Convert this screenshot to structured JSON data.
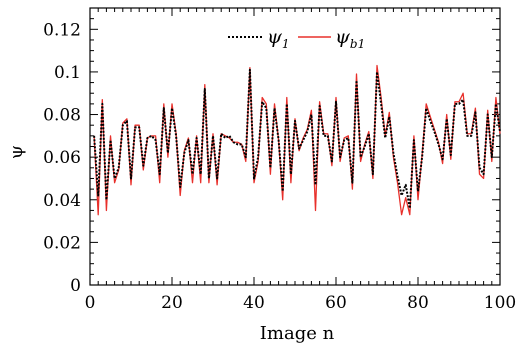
{
  "chart_data": {
    "type": "line",
    "xlabel": "Image n",
    "ylabel": "ψ",
    "xlim": [
      0,
      100
    ],
    "ylim": [
      0,
      0.13
    ],
    "xticks": [
      "0",
      "20",
      "40",
      "60",
      "80",
      "100"
    ],
    "yticks": [
      "0",
      "0.02",
      "0.04",
      "0.06",
      "0.08",
      "0.1",
      "0.12"
    ],
    "legend_position": "top-center",
    "x": [
      1,
      2,
      3,
      4,
      5,
      6,
      7,
      8,
      9,
      10,
      11,
      12,
      13,
      14,
      15,
      16,
      17,
      18,
      19,
      20,
      21,
      22,
      23,
      24,
      25,
      26,
      27,
      28,
      29,
      30,
      31,
      32,
      33,
      34,
      35,
      36,
      37,
      38,
      39,
      40,
      41,
      42,
      43,
      44,
      45,
      46,
      47,
      48,
      49,
      50,
      51,
      52,
      53,
      54,
      55,
      56,
      57,
      58,
      59,
      60,
      61,
      62,
      63,
      64,
      65,
      66,
      67,
      68,
      69,
      70,
      71,
      72,
      73,
      74,
      75,
      76,
      77,
      78,
      79,
      80,
      81,
      82,
      83,
      84,
      85,
      86,
      87,
      88,
      89,
      90,
      91,
      92,
      93,
      94,
      95,
      96,
      97,
      98,
      99,
      100
    ],
    "series": [
      {
        "name": "ψ1",
        "color": "#000000",
        "dash": "dotted",
        "values": [
          0.07,
          0.042,
          0.085,
          0.04,
          0.068,
          0.05,
          0.055,
          0.075,
          0.077,
          0.05,
          0.074,
          0.074,
          0.056,
          0.069,
          0.07,
          0.068,
          0.052,
          0.083,
          0.062,
          0.083,
          0.07,
          0.046,
          0.062,
          0.068,
          0.052,
          0.069,
          0.052,
          0.092,
          0.05,
          0.07,
          0.05,
          0.071,
          0.069,
          0.07,
          0.067,
          0.066,
          0.066,
          0.06,
          0.101,
          0.05,
          0.06,
          0.086,
          0.083,
          0.055,
          0.083,
          0.068,
          0.044,
          0.085,
          0.052,
          0.077,
          0.064,
          0.068,
          0.072,
          0.08,
          0.047,
          0.084,
          0.07,
          0.07,
          0.058,
          0.086,
          0.06,
          0.068,
          0.069,
          0.048,
          0.096,
          0.06,
          0.065,
          0.071,
          0.052,
          0.1,
          0.085,
          0.069,
          0.079,
          0.062,
          0.051,
          0.042,
          0.047,
          0.036,
          0.068,
          0.044,
          0.06,
          0.083,
          0.077,
          0.072,
          0.066,
          0.059,
          0.078,
          0.061,
          0.085,
          0.085,
          0.087,
          0.07,
          0.07,
          0.081,
          0.055,
          0.052,
          0.08,
          0.06,
          0.085,
          0.072
        ]
      },
      {
        "name": "ψb1",
        "color": "#e8302b",
        "dash": "solid",
        "values": [
          0.07,
          0.033,
          0.087,
          0.035,
          0.07,
          0.048,
          0.054,
          0.076,
          0.078,
          0.047,
          0.075,
          0.075,
          0.054,
          0.069,
          0.07,
          0.07,
          0.048,
          0.085,
          0.06,
          0.085,
          0.071,
          0.042,
          0.063,
          0.069,
          0.048,
          0.07,
          0.048,
          0.094,
          0.048,
          0.071,
          0.047,
          0.071,
          0.07,
          0.069,
          0.067,
          0.067,
          0.066,
          0.058,
          0.102,
          0.048,
          0.058,
          0.088,
          0.085,
          0.052,
          0.085,
          0.068,
          0.04,
          0.088,
          0.048,
          0.078,
          0.063,
          0.069,
          0.073,
          0.082,
          0.035,
          0.086,
          0.071,
          0.071,
          0.056,
          0.088,
          0.058,
          0.069,
          0.07,
          0.045,
          0.099,
          0.058,
          0.066,
          0.072,
          0.05,
          0.103,
          0.088,
          0.07,
          0.081,
          0.06,
          0.048,
          0.033,
          0.041,
          0.033,
          0.07,
          0.04,
          0.061,
          0.085,
          0.079,
          0.073,
          0.067,
          0.057,
          0.08,
          0.059,
          0.086,
          0.086,
          0.09,
          0.071,
          0.071,
          0.083,
          0.052,
          0.05,
          0.082,
          0.058,
          0.088,
          0.071
        ]
      }
    ]
  }
}
